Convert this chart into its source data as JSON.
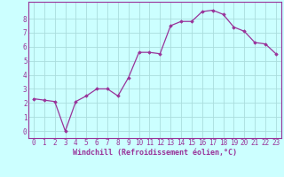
{
  "x": [
    0,
    1,
    2,
    3,
    4,
    5,
    6,
    7,
    8,
    9,
    10,
    11,
    12,
    13,
    14,
    15,
    16,
    17,
    18,
    19,
    20,
    21,
    22,
    23
  ],
  "y": [
    2.3,
    2.2,
    2.1,
    0.0,
    2.1,
    2.5,
    3.0,
    3.0,
    2.5,
    3.8,
    5.6,
    5.6,
    5.5,
    7.5,
    7.8,
    7.8,
    8.5,
    8.6,
    8.3,
    7.4,
    7.1,
    6.3,
    6.2,
    5.5
  ],
  "line_color": "#993399",
  "marker": "D",
  "markersize": 1.8,
  "linewidth": 0.9,
  "bg_color": "#ccffff",
  "grid_color": "#aadddd",
  "xlabel": "Windchill (Refroidissement éolien,°C)",
  "xlabel_color": "#993399",
  "tick_color": "#993399",
  "xlim": [
    -0.5,
    23.5
  ],
  "ylim": [
    -0.5,
    9.2
  ],
  "yticks": [
    0,
    1,
    2,
    3,
    4,
    5,
    6,
    7,
    8
  ],
  "xticks": [
    0,
    1,
    2,
    3,
    4,
    5,
    6,
    7,
    8,
    9,
    10,
    11,
    12,
    13,
    14,
    15,
    16,
    17,
    18,
    19,
    20,
    21,
    22,
    23
  ],
  "spine_color": "#993399",
  "tick_fontsize": 5.5,
  "xlabel_fontsize": 6.0
}
